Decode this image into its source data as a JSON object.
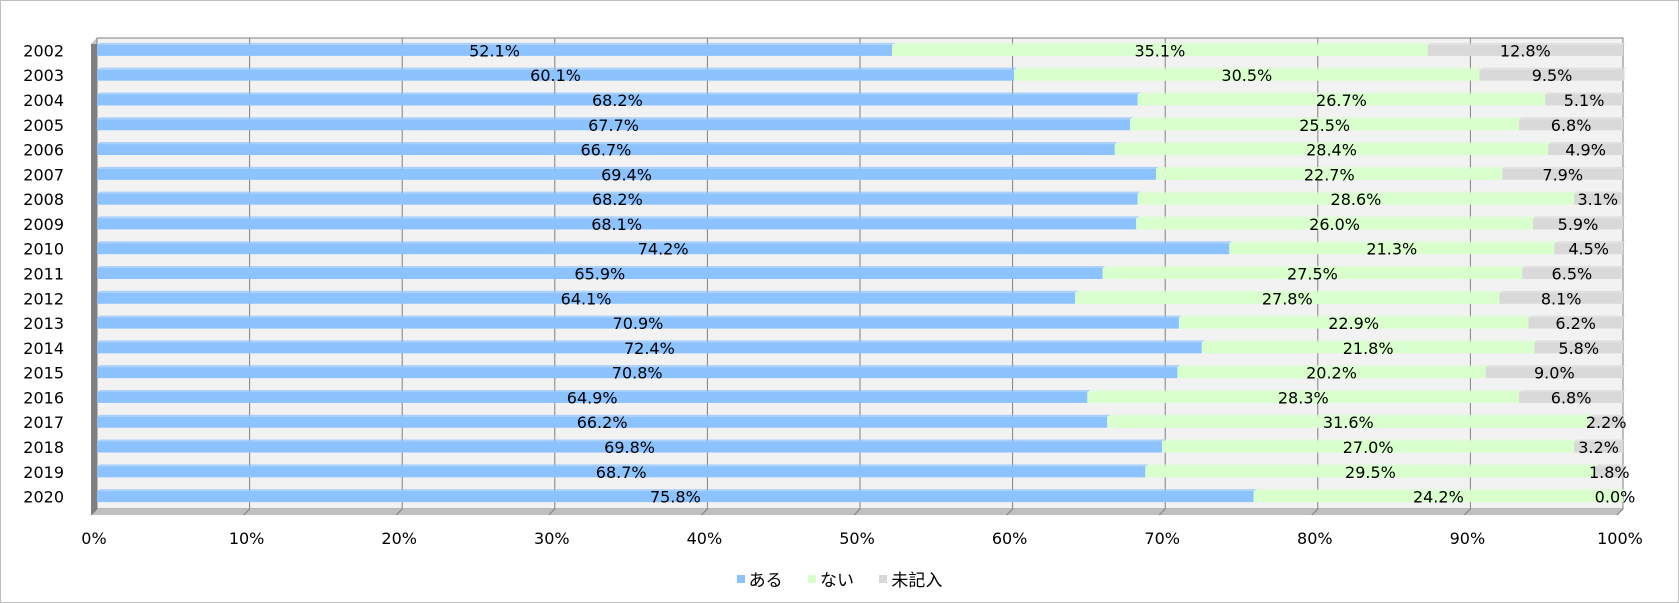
{
  "chart_data": {
    "type": "bar",
    "orientation": "horizontal",
    "stacked": "percent",
    "categories": [
      "2002",
      "2003",
      "2004",
      "2005",
      "2006",
      "2007",
      "2008",
      "2009",
      "2010",
      "2011",
      "2012",
      "2013",
      "2014",
      "2015",
      "2016",
      "2017",
      "2018",
      "2019",
      "2020"
    ],
    "series": [
      {
        "name": "ある",
        "color": "#8cc3ff",
        "values": [
          52.1,
          60.1,
          68.2,
          67.7,
          66.7,
          69.4,
          68.2,
          68.1,
          74.2,
          65.9,
          64.1,
          70.9,
          72.4,
          70.8,
          64.9,
          66.2,
          69.8,
          68.7,
          75.8
        ],
        "labels": [
          "52.1%",
          "60.1%",
          "68.2%",
          "67.7%",
          "66.7%",
          "69.4%",
          "68.2%",
          "68.1%",
          "74.2%",
          "65.9%",
          "64.1%",
          "70.9%",
          "72.4%",
          "70.8%",
          "64.9%",
          "66.2%",
          "69.8%",
          "68.7%",
          "75.8%"
        ]
      },
      {
        "name": "ない",
        "color": "#d9ffcc",
        "values": [
          35.1,
          30.5,
          26.7,
          25.5,
          28.4,
          22.7,
          28.6,
          26.0,
          21.3,
          27.5,
          27.8,
          22.9,
          21.8,
          20.2,
          28.3,
          31.6,
          27.0,
          29.5,
          24.2
        ],
        "labels": [
          "35.1%",
          "30.5%",
          "26.7%",
          "25.5%",
          "28.4%",
          "22.7%",
          "28.6%",
          "26.0%",
          "21.3%",
          "27.5%",
          "27.8%",
          "22.9%",
          "21.8%",
          "20.2%",
          "28.3%",
          "31.6%",
          "27.0%",
          "29.5%",
          "24.2%"
        ]
      },
      {
        "name": "未記入",
        "color": "#d9d9d9",
        "values": [
          12.8,
          9.5,
          5.1,
          6.8,
          4.9,
          7.9,
          3.1,
          5.9,
          4.5,
          6.5,
          8.1,
          6.2,
          5.8,
          9.0,
          6.8,
          2.2,
          3.2,
          1.8,
          0.0
        ],
        "labels": [
          "12.8%",
          "9.5%",
          "5.1%",
          "6.8%",
          "4.9%",
          "7.9%",
          "3.1%",
          "5.9%",
          "4.5%",
          "6.5%",
          "8.1%",
          "6.2%",
          "5.8%",
          "9.0%",
          "6.8%",
          "2.2%",
          "3.2%",
          "1.8%",
          "0.0%"
        ]
      }
    ],
    "xlim": [
      0,
      100
    ],
    "xticks": [
      "0%",
      "10%",
      "20%",
      "30%",
      "40%",
      "50%",
      "60%",
      "70%",
      "80%",
      "90%",
      "100%"
    ],
    "grid": true,
    "legend": "bottom",
    "title": "",
    "xlabel": "",
    "ylabel": ""
  }
}
